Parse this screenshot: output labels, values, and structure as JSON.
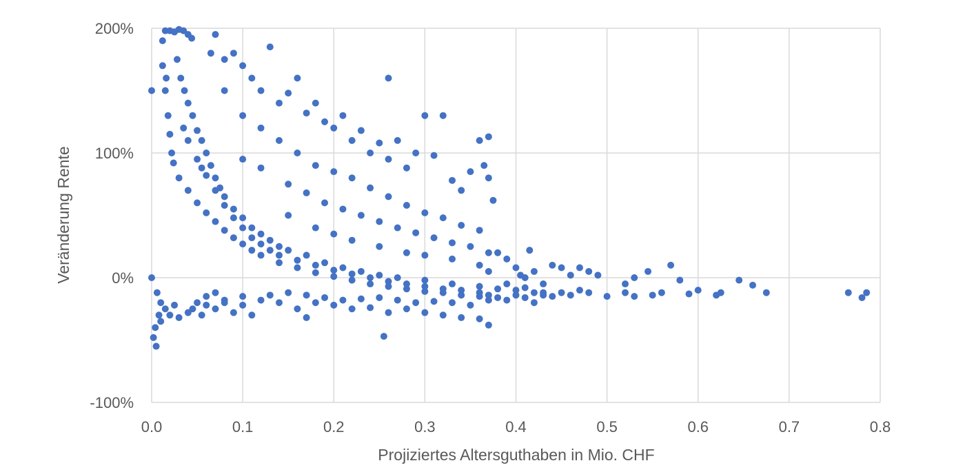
{
  "chart_data": {
    "type": "scatter",
    "title": "",
    "xlabel": "Projiziertes Altersguthaben in Mio. CHF",
    "ylabel": "Veränderung Rente",
    "xlim": [
      0,
      0.8
    ],
    "ylim": [
      -100,
      200
    ],
    "x_ticks": [
      {
        "value": 0.0,
        "label": "0.0"
      },
      {
        "value": 0.1,
        "label": "0.1"
      },
      {
        "value": 0.2,
        "label": "0.2"
      },
      {
        "value": 0.3,
        "label": "0.3"
      },
      {
        "value": 0.4,
        "label": "0.4"
      },
      {
        "value": 0.5,
        "label": "0.5"
      },
      {
        "value": 0.6,
        "label": "0.6"
      },
      {
        "value": 0.7,
        "label": "0.7"
      },
      {
        "value": 0.8,
        "label": "0.8"
      }
    ],
    "y_ticks": [
      {
        "value": 200,
        "label": "200%"
      },
      {
        "value": 100,
        "label": "100%"
      },
      {
        "value": 0,
        "label": "0%"
      },
      {
        "value": -100,
        "label": "-100%"
      }
    ],
    "grid": true,
    "marker_color": "#4472C4",
    "series": [
      {
        "name": "",
        "points": [
          [
            0.0,
            150
          ],
          [
            0.0,
            0
          ],
          [
            0.005,
            -55
          ],
          [
            0.002,
            -48
          ],
          [
            0.004,
            -40
          ],
          [
            0.008,
            -30
          ],
          [
            0.01,
            -20
          ],
          [
            0.006,
            -12
          ],
          [
            0.012,
            190
          ],
          [
            0.015,
            198
          ],
          [
            0.02,
            198
          ],
          [
            0.025,
            197
          ],
          [
            0.03,
            199
          ],
          [
            0.035,
            198
          ],
          [
            0.04,
            195
          ],
          [
            0.044,
            192
          ],
          [
            0.012,
            170
          ],
          [
            0.015,
            150
          ],
          [
            0.018,
            130
          ],
          [
            0.02,
            115
          ],
          [
            0.022,
            100
          ],
          [
            0.024,
            92
          ],
          [
            0.016,
            160
          ],
          [
            0.028,
            175
          ],
          [
            0.032,
            160
          ],
          [
            0.036,
            150
          ],
          [
            0.04,
            140
          ],
          [
            0.045,
            130
          ],
          [
            0.05,
            118
          ],
          [
            0.055,
            110
          ],
          [
            0.06,
            100
          ],
          [
            0.065,
            90
          ],
          [
            0.07,
            80
          ],
          [
            0.075,
            72
          ],
          [
            0.08,
            65
          ],
          [
            0.09,
            55
          ],
          [
            0.1,
            48
          ],
          [
            0.11,
            40
          ],
          [
            0.12,
            35
          ],
          [
            0.13,
            30
          ],
          [
            0.14,
            25
          ],
          [
            0.15,
            22
          ],
          [
            0.17,
            18
          ],
          [
            0.19,
            12
          ],
          [
            0.21,
            8
          ],
          [
            0.23,
            5
          ],
          [
            0.25,
            2
          ],
          [
            0.27,
            0
          ],
          [
            0.3,
            -2
          ],
          [
            0.33,
            -5
          ],
          [
            0.36,
            -7
          ],
          [
            0.38,
            -9
          ],
          [
            0.035,
            120
          ],
          [
            0.04,
            110
          ],
          [
            0.05,
            95
          ],
          [
            0.055,
            88
          ],
          [
            0.06,
            82
          ],
          [
            0.07,
            70
          ],
          [
            0.08,
            58
          ],
          [
            0.09,
            48
          ],
          [
            0.1,
            40
          ],
          [
            0.11,
            32
          ],
          [
            0.12,
            27
          ],
          [
            0.13,
            22
          ],
          [
            0.14,
            18
          ],
          [
            0.16,
            14
          ],
          [
            0.18,
            10
          ],
          [
            0.2,
            6
          ],
          [
            0.22,
            3
          ],
          [
            0.24,
            0
          ],
          [
            0.26,
            -3
          ],
          [
            0.28,
            -5
          ],
          [
            0.3,
            -7
          ],
          [
            0.32,
            -9
          ],
          [
            0.34,
            -10
          ],
          [
            0.36,
            -12
          ],
          [
            0.37,
            -14
          ],
          [
            0.03,
            80
          ],
          [
            0.04,
            70
          ],
          [
            0.05,
            60
          ],
          [
            0.06,
            52
          ],
          [
            0.07,
            45
          ],
          [
            0.08,
            38
          ],
          [
            0.09,
            32
          ],
          [
            0.1,
            27
          ],
          [
            0.11,
            22
          ],
          [
            0.12,
            18
          ],
          [
            0.14,
            12
          ],
          [
            0.16,
            8
          ],
          [
            0.18,
            4
          ],
          [
            0.2,
            1
          ],
          [
            0.22,
            -2
          ],
          [
            0.24,
            -5
          ],
          [
            0.26,
            -7
          ],
          [
            0.28,
            -9
          ],
          [
            0.3,
            -11
          ],
          [
            0.32,
            -12
          ],
          [
            0.34,
            -14
          ],
          [
            0.36,
            -15
          ],
          [
            0.07,
            195
          ],
          [
            0.065,
            180
          ],
          [
            0.08,
            175
          ],
          [
            0.09,
            180
          ],
          [
            0.1,
            170
          ],
          [
            0.11,
            160
          ],
          [
            0.12,
            150
          ],
          [
            0.13,
            185
          ],
          [
            0.14,
            140
          ],
          [
            0.15,
            148
          ],
          [
            0.16,
            160
          ],
          [
            0.17,
            132
          ],
          [
            0.18,
            140
          ],
          [
            0.19,
            125
          ],
          [
            0.2,
            120
          ],
          [
            0.21,
            130
          ],
          [
            0.22,
            110
          ],
          [
            0.23,
            118
          ],
          [
            0.24,
            100
          ],
          [
            0.25,
            108
          ],
          [
            0.26,
            95
          ],
          [
            0.27,
            110
          ],
          [
            0.28,
            88
          ],
          [
            0.29,
            100
          ],
          [
            0.3,
            130
          ],
          [
            0.31,
            98
          ],
          [
            0.32,
            130
          ],
          [
            0.33,
            78
          ],
          [
            0.34,
            70
          ],
          [
            0.35,
            85
          ],
          [
            0.36,
            110
          ],
          [
            0.37,
            113
          ],
          [
            0.365,
            90
          ],
          [
            0.37,
            80
          ],
          [
            0.375,
            62
          ],
          [
            0.26,
            160
          ],
          [
            0.08,
            150
          ],
          [
            0.1,
            130
          ],
          [
            0.12,
            120
          ],
          [
            0.14,
            110
          ],
          [
            0.16,
            100
          ],
          [
            0.18,
            90
          ],
          [
            0.2,
            85
          ],
          [
            0.22,
            80
          ],
          [
            0.24,
            72
          ],
          [
            0.26,
            65
          ],
          [
            0.28,
            58
          ],
          [
            0.3,
            52
          ],
          [
            0.32,
            48
          ],
          [
            0.34,
            42
          ],
          [
            0.36,
            38
          ],
          [
            0.1,
            95
          ],
          [
            0.12,
            88
          ],
          [
            0.15,
            75
          ],
          [
            0.17,
            68
          ],
          [
            0.19,
            60
          ],
          [
            0.21,
            55
          ],
          [
            0.23,
            50
          ],
          [
            0.25,
            45
          ],
          [
            0.27,
            40
          ],
          [
            0.29,
            36
          ],
          [
            0.31,
            32
          ],
          [
            0.33,
            28
          ],
          [
            0.35,
            25
          ],
          [
            0.37,
            20
          ],
          [
            0.15,
            50
          ],
          [
            0.18,
            40
          ],
          [
            0.2,
            35
          ],
          [
            0.22,
            30
          ],
          [
            0.25,
            25
          ],
          [
            0.28,
            20
          ],
          [
            0.3,
            18
          ],
          [
            0.33,
            15
          ],
          [
            0.36,
            10
          ],
          [
            0.37,
            5
          ],
          [
            0.05,
            -20
          ],
          [
            0.06,
            -15
          ],
          [
            0.07,
            -12
          ],
          [
            0.08,
            -20
          ],
          [
            0.1,
            -22
          ],
          [
            0.12,
            -18
          ],
          [
            0.14,
            -20
          ],
          [
            0.16,
            -25
          ],
          [
            0.18,
            -20
          ],
          [
            0.2,
            -22
          ],
          [
            0.22,
            -25
          ],
          [
            0.24,
            -24
          ],
          [
            0.26,
            -28
          ],
          [
            0.28,
            -25
          ],
          [
            0.3,
            -28
          ],
          [
            0.32,
            -30
          ],
          [
            0.34,
            -32
          ],
          [
            0.36,
            -33
          ],
          [
            0.37,
            -38
          ],
          [
            0.255,
            -47
          ],
          [
            0.17,
            -32
          ],
          [
            0.01,
            -35
          ],
          [
            0.02,
            -30
          ],
          [
            0.03,
            -32
          ],
          [
            0.04,
            -28
          ],
          [
            0.055,
            -30
          ],
          [
            0.07,
            -25
          ],
          [
            0.09,
            -28
          ],
          [
            0.11,
            -30
          ],
          [
            0.015,
            -25
          ],
          [
            0.025,
            -22
          ],
          [
            0.045,
            -25
          ],
          [
            0.06,
            -22
          ],
          [
            0.08,
            -18
          ],
          [
            0.1,
            -15
          ],
          [
            0.13,
            -14
          ],
          [
            0.15,
            -12
          ],
          [
            0.17,
            -14
          ],
          [
            0.19,
            -16
          ],
          [
            0.21,
            -18
          ],
          [
            0.23,
            -17
          ],
          [
            0.25,
            -16
          ],
          [
            0.27,
            -18
          ],
          [
            0.29,
            -20
          ],
          [
            0.31,
            -19
          ],
          [
            0.33,
            -20
          ],
          [
            0.35,
            -22
          ],
          [
            0.37,
            -18
          ],
          [
            0.38,
            -16
          ],
          [
            0.39,
            -18
          ],
          [
            0.4,
            -14
          ],
          [
            0.41,
            -16
          ],
          [
            0.42,
            -20
          ],
          [
            0.43,
            -12
          ],
          [
            0.44,
            -15
          ],
          [
            0.45,
            -12
          ],
          [
            0.46,
            -14
          ],
          [
            0.47,
            -10
          ],
          [
            0.48,
            -12
          ],
          [
            0.5,
            -15
          ],
          [
            0.52,
            -12
          ],
          [
            0.53,
            -15
          ],
          [
            0.55,
            -14
          ],
          [
            0.56,
            -12
          ],
          [
            0.59,
            -13
          ],
          [
            0.6,
            -10
          ],
          [
            0.62,
            -14
          ],
          [
            0.625,
            -12
          ],
          [
            0.645,
            -2
          ],
          [
            0.66,
            -6
          ],
          [
            0.675,
            -12
          ],
          [
            0.765,
            -12
          ],
          [
            0.78,
            -16
          ],
          [
            0.785,
            -12
          ],
          [
            0.38,
            20
          ],
          [
            0.39,
            15
          ],
          [
            0.4,
            8
          ],
          [
            0.405,
            2
          ],
          [
            0.41,
            0
          ],
          [
            0.415,
            22
          ],
          [
            0.42,
            5
          ],
          [
            0.43,
            -5
          ],
          [
            0.44,
            10
          ],
          [
            0.45,
            8
          ],
          [
            0.46,
            2
          ],
          [
            0.47,
            8
          ],
          [
            0.48,
            5
          ],
          [
            0.49,
            2
          ],
          [
            0.52,
            -5
          ],
          [
            0.53,
            0
          ],
          [
            0.545,
            5
          ],
          [
            0.57,
            10
          ],
          [
            0.58,
            -2
          ],
          [
            0.39,
            -5
          ],
          [
            0.4,
            -10
          ],
          [
            0.41,
            -8
          ],
          [
            0.42,
            -12
          ],
          [
            0.43,
            -14
          ]
        ]
      }
    ]
  }
}
